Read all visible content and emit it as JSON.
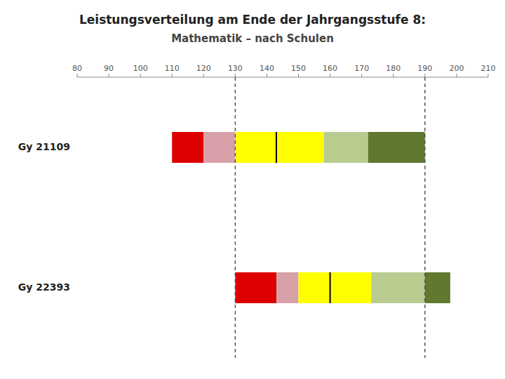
{
  "chart_data": {
    "type": "bar",
    "orientation": "horizontal",
    "title": "Leistungsverteilung am Ende der Jahrgangsstufe 8:",
    "subtitle": "Mathematik – nach Schulen",
    "categories": [
      "Gy 21109",
      "Gy 22393"
    ],
    "series": [
      {
        "color": "#dd0000",
        "start": [
          110,
          130
        ],
        "end": [
          120,
          143
        ]
      },
      {
        "color": "#d8a0a8",
        "start": [
          120,
          143
        ],
        "end": [
          130,
          150
        ]
      },
      {
        "color": "#ffff00",
        "start": [
          130,
          150
        ],
        "end": [
          143,
          160
        ]
      },
      {
        "color": "#ffff00",
        "marker": "line",
        "start": [
          143,
          160
        ],
        "end": [
          158,
          173
        ]
      },
      {
        "color": "#b8cc90",
        "start": [
          158,
          173
        ],
        "end": [
          172,
          190
        ]
      },
      {
        "color": "#607830",
        "start": [
          172,
          190
        ],
        "end": [
          190,
          198
        ]
      }
    ],
    "reference_lines": [
      130,
      190
    ],
    "xlim": [
      80,
      210
    ],
    "xticks": [
      80,
      90,
      100,
      110,
      120,
      130,
      140,
      150,
      160,
      170,
      180,
      190,
      200,
      210
    ],
    "grid": false,
    "tick_labels": "x"
  }
}
